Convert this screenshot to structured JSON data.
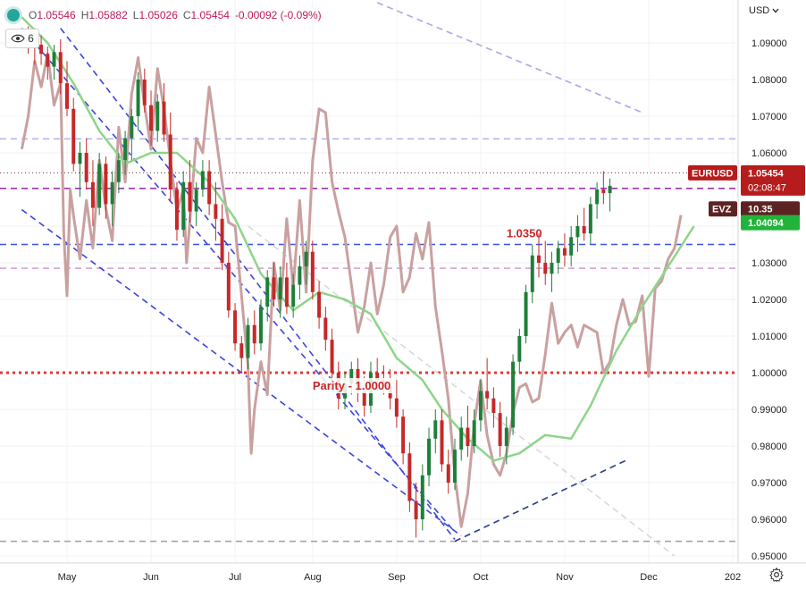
{
  "legend": {
    "o_label": "O",
    "o": "1.05546",
    "h_label": "H",
    "h": "1.05882",
    "l_label": "L",
    "l": "1.05026",
    "c_label": "C",
    "c": "1.05454",
    "change": "-0.00092 (-0.09%)",
    "indicator_count": "6",
    "status_icon": "green-dot-icon",
    "badge_icon": "eye-icon"
  },
  "currency_selector": {
    "label": "USD",
    "icon": "chevron-down-icon"
  },
  "settings_icon": "gear-icon",
  "chart_data": {
    "type": "candlestick",
    "symbol": "EURUSD",
    "x_ticks": [
      "May",
      "Jun",
      "Jul",
      "Aug",
      "Sep",
      "Oct",
      "Nov",
      "Dec",
      "202"
    ],
    "y_ticks": [
      "1.09000",
      "1.08000",
      "1.07000",
      "1.06000",
      "1.05000",
      "1.04000",
      "1.03000",
      "1.02000",
      "1.01000",
      "1.00000",
      "0.99000",
      "0.98000",
      "0.97000",
      "0.96000",
      "0.95000"
    ],
    "ylim": [
      0.95,
      1.095
    ],
    "y_tick_values": [
      1.09,
      1.08,
      1.07,
      1.06,
      1.05,
      1.04,
      1.03,
      1.02,
      1.01,
      1.0,
      0.99,
      0.98,
      0.97,
      0.96,
      0.95
    ],
    "x_range": [
      0.5,
      12.9
    ],
    "x_tick_values": [
      1.2,
      2.5,
      3.8,
      5.0,
      6.3,
      7.6,
      8.9,
      10.2,
      11.5
    ],
    "annotations": {
      "level_label": "1.0350",
      "level_value": 1.035,
      "parity_label": "Parity - 1.0000",
      "parity_value": 1.0
    },
    "horizontal_levels": [
      {
        "value": 1.0638,
        "color": "#b0b0f0",
        "style": "dashed"
      },
      {
        "value": 1.0503,
        "color": "#9c27b0",
        "style": "dashed"
      },
      {
        "value": 1.035,
        "color": "#3f4fe0",
        "style": "dashed"
      },
      {
        "value": 1.0285,
        "color": "#d49ad4",
        "style": "dashed"
      },
      {
        "value": 1.0,
        "color": "#e53935",
        "style": "dotted"
      },
      {
        "value": 0.954,
        "color": "#9e9e9e",
        "style": "dashed"
      }
    ],
    "trend_lines": [
      {
        "from": [
          1.1,
          1.094
        ],
        "to": [
          7.2,
          0.9545
        ],
        "color": "#3a44e0"
      },
      {
        "from": [
          0.5,
          1.0445
        ],
        "to": [
          7.3,
          0.9555
        ],
        "color": "#3a44e0"
      },
      {
        "from": [
          0.5,
          1.094
        ],
        "to": [
          7.2,
          0.9565
        ],
        "color": "#3a44e0"
      },
      {
        "from": [
          7.2,
          0.954
        ],
        "to": [
          9.9,
          0.9765
        ],
        "color": "#2c3e8c"
      },
      {
        "from": [
          6.0,
          1.101
        ],
        "to": [
          10.1,
          1.071
        ],
        "color": "#a8a8e8"
      },
      {
        "from": [
          4.0,
          1.04
        ],
        "to": [
          10.6,
          0.95
        ],
        "color": "#d8d8d8"
      }
    ],
    "price_series": {
      "name": "EURUSD",
      "last": "1.05454",
      "countdown": "02:08:47",
      "candle_up": "#1e7f3a",
      "candle_down": "#c62828"
    },
    "moving_average": {
      "color": "#8fd48a",
      "last": "1.04094",
      "points": [
        [
          0.5,
          1.097
        ],
        [
          0.9,
          1.09
        ],
        [
          1.3,
          1.079
        ],
        [
          1.7,
          1.066
        ],
        [
          2.1,
          1.057
        ],
        [
          2.5,
          1.06
        ],
        [
          2.9,
          1.06
        ],
        [
          3.4,
          1.052
        ],
        [
          3.8,
          1.042
        ],
        [
          4.2,
          1.027
        ],
        [
          4.7,
          1.017
        ],
        [
          5.1,
          1.022
        ],
        [
          5.5,
          1.02
        ],
        [
          5.9,
          1.016
        ],
        [
          6.3,
          1.004
        ],
        [
          6.7,
          0.998
        ],
        [
          7.0,
          0.99
        ],
        [
          7.4,
          0.982
        ],
        [
          7.8,
          0.976
        ],
        [
          8.2,
          0.978
        ],
        [
          8.6,
          0.983
        ],
        [
          9.0,
          0.982
        ],
        [
          9.3,
          0.991
        ],
        [
          9.7,
          1.006
        ],
        [
          10.1,
          1.018
        ],
        [
          10.5,
          1.029
        ],
        [
          10.9,
          1.04
        ]
      ]
    },
    "evz": {
      "name": "EVZ",
      "last": "10.35",
      "color": "#c9a0a0",
      "points": [
        [
          0.5,
          1.061
        ],
        [
          0.6,
          1.07
        ],
        [
          0.7,
          1.085
        ],
        [
          0.8,
          1.078
        ],
        [
          0.9,
          1.087
        ],
        [
          1.0,
          1.073
        ],
        [
          1.1,
          1.079
        ],
        [
          1.15,
          1.038
        ],
        [
          1.2,
          1.021
        ],
        [
          1.25,
          1.05
        ],
        [
          1.3,
          1.043
        ],
        [
          1.4,
          1.031
        ],
        [
          1.5,
          1.047
        ],
        [
          1.6,
          1.034
        ],
        [
          1.7,
          1.058
        ],
        [
          1.8,
          1.045
        ],
        [
          1.9,
          1.036
        ],
        [
          2.0,
          1.067
        ],
        [
          2.1,
          1.052
        ],
        [
          2.2,
          1.076
        ],
        [
          2.3,
          1.086
        ],
        [
          2.4,
          1.073
        ],
        [
          2.5,
          1.061
        ],
        [
          2.6,
          1.083
        ],
        [
          2.7,
          1.072
        ],
        [
          2.8,
          1.058
        ],
        [
          2.9,
          1.044
        ],
        [
          3.0,
          1.05
        ],
        [
          3.05,
          1.03
        ],
        [
          3.1,
          1.041
        ],
        [
          3.2,
          1.064
        ],
        [
          3.3,
          1.06
        ],
        [
          3.4,
          1.078
        ],
        [
          3.5,
          1.065
        ],
        [
          3.6,
          1.052
        ],
        [
          3.7,
          1.041
        ],
        [
          3.8,
          1.04
        ],
        [
          3.9,
          1.021
        ],
        [
          4.0,
          1.002
        ],
        [
          4.05,
          0.978
        ],
        [
          4.1,
          0.99
        ],
        [
          4.2,
          1.003
        ],
        [
          4.3,
          0.994
        ],
        [
          4.4,
          1.03
        ],
        [
          4.5,
          1.017
        ],
        [
          4.6,
          1.042
        ],
        [
          4.7,
          1.023
        ],
        [
          4.8,
          1.047
        ],
        [
          4.9,
          1.022
        ],
        [
          5.0,
          1.058
        ],
        [
          5.1,
          1.072
        ],
        [
          5.2,
          1.071
        ],
        [
          5.3,
          1.052
        ],
        [
          5.4,
          1.044
        ],
        [
          5.5,
          1.037
        ],
        [
          5.6,
          1.024
        ],
        [
          5.7,
          1.011
        ],
        [
          5.8,
          1.018
        ],
        [
          5.9,
          1.03
        ],
        [
          6.0,
          1.016
        ],
        [
          6.1,
          1.024
        ],
        [
          6.2,
          1.037
        ],
        [
          6.3,
          1.04
        ],
        [
          6.4,
          1.022
        ],
        [
          6.5,
          1.026
        ],
        [
          6.6,
          1.038
        ],
        [
          6.7,
          1.031
        ],
        [
          6.8,
          1.041
        ],
        [
          6.9,
          1.018
        ],
        [
          7.0,
          1.006
        ],
        [
          7.1,
          0.993
        ],
        [
          7.2,
          0.972
        ],
        [
          7.3,
          0.958
        ],
        [
          7.4,
          0.967
        ],
        [
          7.5,
          0.986
        ],
        [
          7.6,
          0.998
        ],
        [
          7.7,
          0.983
        ],
        [
          7.8,
          0.975
        ],
        [
          7.9,
          0.972
        ],
        [
          8.0,
          0.978
        ],
        [
          8.1,
          0.989
        ],
        [
          8.2,
          0.996
        ],
        [
          8.3,
          0.997
        ],
        [
          8.4,
          0.992
        ],
        [
          8.5,
          0.993
        ],
        [
          8.6,
          1.005
        ],
        [
          8.7,
          1.019
        ],
        [
          8.8,
          1.008
        ],
        [
          8.9,
          1.011
        ],
        [
          9.0,
          1.013
        ],
        [
          9.1,
          1.007
        ],
        [
          9.2,
          1.013
        ],
        [
          9.3,
          1.012
        ],
        [
          9.4,
          1.011
        ],
        [
          9.5,
          1.0
        ],
        [
          9.6,
          1.003
        ],
        [
          9.7,
          1.013
        ],
        [
          9.8,
          1.02
        ],
        [
          9.9,
          1.013
        ],
        [
          10.0,
          1.014
        ],
        [
          10.1,
          1.021
        ],
        [
          10.2,
          0.999
        ],
        [
          10.3,
          1.023
        ],
        [
          10.4,
          1.025
        ],
        [
          10.5,
          1.031
        ],
        [
          10.6,
          1.034
        ],
        [
          10.7,
          1.043
        ]
      ]
    },
    "candles": [
      [
        0.6,
        1.0925,
        1.0945,
        1.087,
        1.0905
      ],
      [
        0.7,
        1.0905,
        1.094,
        1.084,
        1.0895
      ],
      [
        0.8,
        1.0895,
        1.092,
        1.084,
        1.087
      ],
      [
        0.9,
        1.087,
        1.089,
        1.08,
        1.0835
      ],
      [
        1.0,
        1.0835,
        1.0895,
        1.08,
        1.0875
      ],
      [
        1.1,
        1.0875,
        1.091,
        1.076,
        1.079
      ],
      [
        1.2,
        1.079,
        1.085,
        1.07,
        1.072
      ],
      [
        1.3,
        1.072,
        1.075,
        1.055,
        1.057
      ],
      [
        1.4,
        1.057,
        1.063,
        1.048,
        1.06
      ],
      [
        1.5,
        1.06,
        1.064,
        1.05,
        1.052
      ],
      [
        1.6,
        1.052,
        1.058,
        1.04,
        1.045
      ],
      [
        1.7,
        1.045,
        1.06,
        1.043,
        1.057
      ],
      [
        1.8,
        1.057,
        1.059,
        1.042,
        1.046
      ],
      [
        1.9,
        1.046,
        1.055,
        1.04,
        1.052
      ],
      [
        2.0,
        1.052,
        1.06,
        1.049,
        1.058
      ],
      [
        2.1,
        1.058,
        1.066,
        1.054,
        1.064
      ],
      [
        2.2,
        1.064,
        1.072,
        1.058,
        1.07
      ],
      [
        2.3,
        1.07,
        1.082,
        1.066,
        1.08
      ],
      [
        2.4,
        1.08,
        1.083,
        1.071,
        1.073
      ],
      [
        2.5,
        1.073,
        1.077,
        1.062,
        1.066
      ],
      [
        2.6,
        1.066,
        1.076,
        1.063,
        1.074
      ],
      [
        2.7,
        1.074,
        1.079,
        1.063,
        1.065
      ],
      [
        2.8,
        1.065,
        1.071,
        1.047,
        1.05
      ],
      [
        2.9,
        1.05,
        1.052,
        1.036,
        1.039
      ],
      [
        3.0,
        1.039,
        1.055,
        1.037,
        1.052
      ],
      [
        3.1,
        1.052,
        1.058,
        1.041,
        1.044
      ],
      [
        3.2,
        1.044,
        1.052,
        1.04,
        1.05
      ],
      [
        3.3,
        1.05,
        1.058,
        1.048,
        1.055
      ],
      [
        3.4,
        1.055,
        1.058,
        1.043,
        1.046
      ],
      [
        3.5,
        1.046,
        1.052,
        1.036,
        1.042
      ],
      [
        3.6,
        1.042,
        1.046,
        1.028,
        1.03
      ],
      [
        3.7,
        1.03,
        1.033,
        1.015,
        1.017
      ],
      [
        3.8,
        1.017,
        1.019,
        1.006,
        1.008
      ],
      [
        3.9,
        1.008,
        1.01,
        1.0,
        1.004
      ],
      [
        4.0,
        1.004,
        1.015,
        1.001,
        1.013
      ],
      [
        4.1,
        1.013,
        1.017,
        1.005,
        1.008
      ],
      [
        4.2,
        1.008,
        1.02,
        1.006,
        1.018
      ],
      [
        4.3,
        1.018,
        1.028,
        1.014,
        1.026
      ],
      [
        4.4,
        1.026,
        1.03,
        1.018,
        1.02
      ],
      [
        4.5,
        1.02,
        1.029,
        1.015,
        1.026
      ],
      [
        4.6,
        1.026,
        1.03,
        1.016,
        1.018
      ],
      [
        4.7,
        1.018,
        1.027,
        1.015,
        1.024
      ],
      [
        4.8,
        1.024,
        1.032,
        1.02,
        1.029
      ],
      [
        4.9,
        1.029,
        1.036,
        1.024,
        1.033
      ],
      [
        5.0,
        1.033,
        1.036,
        1.02,
        1.022
      ],
      [
        5.1,
        1.022,
        1.025,
        1.012,
        1.015
      ],
      [
        5.2,
        1.015,
        1.018,
        1.006,
        1.009
      ],
      [
        5.3,
        1.009,
        1.012,
        0.998,
        1.0
      ],
      [
        5.4,
        1.0,
        1.003,
        0.99,
        0.993
      ],
      [
        5.5,
        0.993,
        1.0,
        0.99,
        0.997
      ],
      [
        5.6,
        0.997,
        1.003,
        0.994,
        1.001
      ],
      [
        5.7,
        1.001,
        1.004,
        0.992,
        0.995
      ],
      [
        5.8,
        0.995,
        0.999,
        0.988,
        0.991
      ],
      [
        5.9,
        0.991,
        1.003,
        0.989,
        1.0
      ],
      [
        6.0,
        1.0,
        1.004,
        0.995,
        0.998
      ],
      [
        6.1,
        0.998,
        1.002,
        0.994,
        0.996
      ],
      [
        6.2,
        0.996,
        1.001,
        0.99,
        0.993
      ],
      [
        6.3,
        0.993,
        0.998,
        0.985,
        0.988
      ],
      [
        6.4,
        0.988,
        0.99,
        0.975,
        0.978
      ],
      [
        6.5,
        0.978,
        0.981,
        0.962,
        0.965
      ],
      [
        6.6,
        0.965,
        0.97,
        0.955,
        0.96
      ],
      [
        6.7,
        0.96,
        0.975,
        0.957,
        0.972
      ],
      [
        6.8,
        0.972,
        0.985,
        0.969,
        0.982
      ],
      [
        6.9,
        0.982,
        0.99,
        0.978,
        0.987
      ],
      [
        7.0,
        0.987,
        0.99,
        0.973,
        0.975
      ],
      [
        7.1,
        0.975,
        0.979,
        0.967,
        0.97
      ],
      [
        7.2,
        0.97,
        0.982,
        0.968,
        0.979
      ],
      [
        7.3,
        0.979,
        0.988,
        0.976,
        0.985
      ],
      [
        7.4,
        0.985,
        0.991,
        0.977,
        0.98
      ],
      [
        7.5,
        0.98,
        0.99,
        0.978,
        0.987
      ],
      [
        7.6,
        0.987,
        0.998,
        0.984,
        0.995
      ],
      [
        7.7,
        0.995,
        1.004,
        0.99,
        0.993
      ],
      [
        7.8,
        0.993,
        0.996,
        0.985,
        0.989
      ],
      [
        7.9,
        0.989,
        0.992,
        0.977,
        0.98
      ],
      [
        8.0,
        0.98,
        0.988,
        0.975,
        0.985
      ],
      [
        8.1,
        0.985,
        1.005,
        0.983,
        1.003
      ],
      [
        8.2,
        1.003,
        1.012,
        1.0,
        1.01
      ],
      [
        8.3,
        1.01,
        1.024,
        1.008,
        1.022
      ],
      [
        8.4,
        1.022,
        1.035,
        1.019,
        1.032
      ],
      [
        8.5,
        1.032,
        1.038,
        1.026,
        1.03
      ],
      [
        8.6,
        1.03,
        1.036,
        1.024,
        1.027
      ],
      [
        8.7,
        1.027,
        1.033,
        1.022,
        1.03
      ],
      [
        8.8,
        1.03,
        1.036,
        1.027,
        1.034
      ],
      [
        8.9,
        1.034,
        1.038,
        1.029,
        1.032
      ],
      [
        9.0,
        1.032,
        1.04,
        1.029,
        1.037
      ],
      [
        9.1,
        1.037,
        1.043,
        1.033,
        1.04
      ],
      [
        9.2,
        1.04,
        1.045,
        1.036,
        1.038
      ],
      [
        9.3,
        1.038,
        1.048,
        1.035,
        1.046
      ],
      [
        9.4,
        1.046,
        1.052,
        1.042,
        1.05
      ],
      [
        9.5,
        1.05,
        1.055,
        1.046,
        1.049
      ],
      [
        9.6,
        1.049,
        1.053,
        1.044,
        1.051
      ]
    ]
  }
}
